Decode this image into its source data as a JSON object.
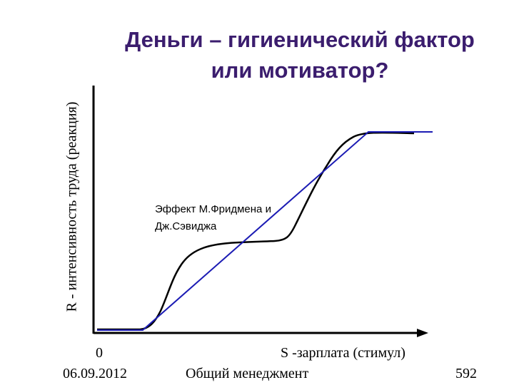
{
  "title": {
    "line1": "Деньги – гигиенический фактор",
    "line2": "или мотиватор?"
  },
  "axes": {
    "y_label": "R - интенсивность труда (реакция)",
    "x_label": "S -зарплата (стимул)",
    "origin_label": "0"
  },
  "annotation": {
    "line1": "Эффект М.Фридмена и",
    "line2": "Дж.Сэвиджа"
  },
  "colors": {
    "title": "#3b1d6e",
    "axes": "#000000",
    "curve": "#000000",
    "linear": "#1c1cb4"
  },
  "footer": {
    "date": "06.09.2012",
    "course": "Общий менеджмент",
    "page": "592"
  }
}
